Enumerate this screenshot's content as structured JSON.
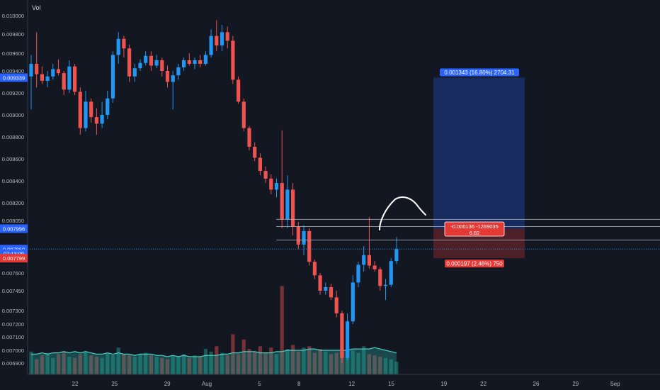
{
  "chart_data": {
    "type": "candlestick",
    "title": "",
    "volume_label": "Vol",
    "y_ticks": [
      0.0069,
      0.007,
      0.0071,
      0.0072,
      0.0073,
      0.00745,
      0.0076,
      0.0078,
      0.00805,
      0.0082,
      0.0084,
      0.0086,
      0.0088,
      0.009,
      0.0092,
      0.0094,
      0.0096,
      0.0098,
      0.01
    ],
    "y_tick_labels": [
      "0.006900",
      "0.007000",
      "0.007100",
      "0.007200",
      "0.007300",
      "0.007450",
      "0.007600",
      "0.007800",
      "0.008050",
      "0.008200",
      "0.008400",
      "0.008600",
      "0.008800",
      "0.009000",
      "0.009200",
      "0.009400",
      "0.009600",
      "0.009800",
      "0.010000"
    ],
    "x_ticks": [
      {
        "label": "22",
        "day": 22
      },
      {
        "label": "25",
        "day": 25
      },
      {
        "label": "29",
        "day": 29
      },
      {
        "label": "Aug",
        "day": 32
      },
      {
        "label": "5",
        "day": 36
      },
      {
        "label": "8",
        "day": 39
      },
      {
        "label": "12",
        "day": 43
      },
      {
        "label": "15",
        "day": 46
      },
      {
        "label": "19",
        "day": 50
      },
      {
        "label": "22",
        "day": 53
      },
      {
        "label": "26",
        "day": 57
      },
      {
        "label": "29",
        "day": 60
      },
      {
        "label": "Sep",
        "day": 63
      }
    ],
    "price_badges": [
      {
        "label": "0.009339",
        "value": 0.009339,
        "color": "#2962ff"
      },
      {
        "label": "0.007996",
        "value": 0.007996,
        "color": "#2962ff"
      },
      {
        "label": "0.007860",
        "value": 0.00786,
        "color": "#2962ff"
      },
      {
        "label": "07:13:09",
        "value": 0.00783,
        "color": "#2962ff"
      },
      {
        "label": "0.007799",
        "value": 0.007799,
        "color": "#e53935"
      }
    ],
    "current_price": 0.00786,
    "candles": [
      {
        "o": 0.00935,
        "h": 0.00958,
        "l": 0.00905,
        "c": 0.00948,
        "v": 0.00699
      },
      {
        "o": 0.00948,
        "h": 0.00982,
        "l": 0.00925,
        "c": 0.00937,
        "v": 0.00693
      },
      {
        "o": 0.00937,
        "h": 0.00945,
        "l": 0.00928,
        "c": 0.00931,
        "v": 0.00696
      },
      {
        "o": 0.00931,
        "h": 0.0094,
        "l": 0.00925,
        "c": 0.00935,
        "v": 0.00698
      },
      {
        "o": 0.00935,
        "h": 0.00948,
        "l": 0.00932,
        "c": 0.00942,
        "v": 0.00694
      },
      {
        "o": 0.00942,
        "h": 0.00953,
        "l": 0.00936,
        "c": 0.00938,
        "v": 0.00697
      },
      {
        "o": 0.00938,
        "h": 0.0094,
        "l": 0.00918,
        "c": 0.00923,
        "v": 0.00699
      },
      {
        "o": 0.00923,
        "h": 0.00952,
        "l": 0.0092,
        "c": 0.00945,
        "v": 0.00695
      },
      {
        "o": 0.00945,
        "h": 0.00948,
        "l": 0.00918,
        "c": 0.00921,
        "v": 0.00694
      },
      {
        "o": 0.00921,
        "h": 0.00925,
        "l": 0.00882,
        "c": 0.00888,
        "v": 0.00697
      },
      {
        "o": 0.00888,
        "h": 0.00922,
        "l": 0.00885,
        "c": 0.00912,
        "v": 0.00699
      },
      {
        "o": 0.00912,
        "h": 0.00915,
        "l": 0.00893,
        "c": 0.00898,
        "v": 0.00696
      },
      {
        "o": 0.00898,
        "h": 0.00906,
        "l": 0.00882,
        "c": 0.00892,
        "v": 0.00695
      },
      {
        "o": 0.00892,
        "h": 0.00912,
        "l": 0.00888,
        "c": 0.009,
        "v": 0.00694
      },
      {
        "o": 0.009,
        "h": 0.00922,
        "l": 0.00896,
        "c": 0.00915,
        "v": 0.00698
      },
      {
        "o": 0.00915,
        "h": 0.00962,
        "l": 0.00911,
        "c": 0.00958,
        "v": 0.00696
      },
      {
        "o": 0.00958,
        "h": 0.00982,
        "l": 0.00948,
        "c": 0.00975,
        "v": 0.00702
      },
      {
        "o": 0.00975,
        "h": 0.00978,
        "l": 0.00955,
        "c": 0.00965,
        "v": 0.00697
      },
      {
        "o": 0.00965,
        "h": 0.00969,
        "l": 0.0093,
        "c": 0.00935,
        "v": 0.00696
      },
      {
        "o": 0.00935,
        "h": 0.00948,
        "l": 0.0093,
        "c": 0.00943,
        "v": 0.00695
      },
      {
        "o": 0.00943,
        "h": 0.00953,
        "l": 0.0094,
        "c": 0.00949,
        "v": 0.00697
      },
      {
        "o": 0.00949,
        "h": 0.00962,
        "l": 0.00946,
        "c": 0.00957,
        "v": 0.00698
      },
      {
        "o": 0.00957,
        "h": 0.00962,
        "l": 0.0094,
        "c": 0.00946,
        "v": 0.00696
      },
      {
        "o": 0.00946,
        "h": 0.00958,
        "l": 0.00943,
        "c": 0.00952,
        "v": 0.00695
      },
      {
        "o": 0.00952,
        "h": 0.00955,
        "l": 0.00935,
        "c": 0.0094,
        "v": 0.00694
      },
      {
        "o": 0.0094,
        "h": 0.00946,
        "l": 0.00925,
        "c": 0.0093,
        "v": 0.00693
      },
      {
        "o": 0.0093,
        "h": 0.0094,
        "l": 0.00905,
        "c": 0.00936,
        "v": 0.00696
      },
      {
        "o": 0.00936,
        "h": 0.00948,
        "l": 0.00932,
        "c": 0.00944,
        "v": 0.00695
      },
      {
        "o": 0.00944,
        "h": 0.00955,
        "l": 0.0094,
        "c": 0.00952,
        "v": 0.00697
      },
      {
        "o": 0.00952,
        "h": 0.0096,
        "l": 0.00946,
        "c": 0.00948,
        "v": 0.00694
      },
      {
        "o": 0.00948,
        "h": 0.00955,
        "l": 0.00942,
        "c": 0.00952,
        "v": 0.00696
      },
      {
        "o": 0.00952,
        "h": 0.00958,
        "l": 0.00944,
        "c": 0.00948,
        "v": 0.00695
      },
      {
        "o": 0.00948,
        "h": 0.00962,
        "l": 0.00946,
        "c": 0.00958,
        "v": 0.00701
      },
      {
        "o": 0.00958,
        "h": 0.00985,
        "l": 0.00955,
        "c": 0.00978,
        "v": 0.00699
      },
      {
        "o": 0.00978,
        "h": 0.00995,
        "l": 0.00962,
        "c": 0.00968,
        "v": 0.00703
      },
      {
        "o": 0.00968,
        "h": 0.0099,
        "l": 0.00962,
        "c": 0.00982,
        "v": 0.00698
      },
      {
        "o": 0.00982,
        "h": 0.00988,
        "l": 0.00965,
        "c": 0.00973,
        "v": 0.00696
      },
      {
        "o": 0.00973,
        "h": 0.00978,
        "l": 0.00928,
        "c": 0.00932,
        "v": 0.00712
      },
      {
        "o": 0.00932,
        "h": 0.00935,
        "l": 0.0091,
        "c": 0.00912,
        "v": 0.00697
      },
      {
        "o": 0.00912,
        "h": 0.00915,
        "l": 0.00885,
        "c": 0.00888,
        "v": 0.00708
      },
      {
        "o": 0.00888,
        "h": 0.0089,
        "l": 0.00868,
        "c": 0.00871,
        "v": 0.00701
      },
      {
        "o": 0.00871,
        "h": 0.00875,
        "l": 0.00858,
        "c": 0.00861,
        "v": 0.00699
      },
      {
        "o": 0.00861,
        "h": 0.00865,
        "l": 0.00845,
        "c": 0.00849,
        "v": 0.00703
      },
      {
        "o": 0.00849,
        "h": 0.00853,
        "l": 0.00838,
        "c": 0.00842,
        "v": 0.00698
      },
      {
        "o": 0.00842,
        "h": 0.00846,
        "l": 0.00828,
        "c": 0.00832,
        "v": 0.00702
      },
      {
        "o": 0.00832,
        "h": 0.00842,
        "l": 0.00825,
        "c": 0.00838,
        "v": 0.00697
      },
      {
        "o": 0.00838,
        "h": 0.00886,
        "l": 0.008,
        "c": 0.00806,
        "v": 0.00749
      },
      {
        "o": 0.00806,
        "h": 0.00845,
        "l": 0.008,
        "c": 0.00832,
        "v": 0.00701
      },
      {
        "o": 0.00832,
        "h": 0.00838,
        "l": 0.00795,
        "c": 0.00801,
        "v": 0.00704
      },
      {
        "o": 0.00801,
        "h": 0.00804,
        "l": 0.00786,
        "c": 0.00789,
        "v": 0.00699
      },
      {
        "o": 0.00789,
        "h": 0.00802,
        "l": 0.00782,
        "c": 0.00798,
        "v": 0.00702
      },
      {
        "o": 0.00798,
        "h": 0.008,
        "l": 0.0077,
        "c": 0.00775,
        "v": 0.00703
      },
      {
        "o": 0.00775,
        "h": 0.00778,
        "l": 0.00755,
        "c": 0.00758,
        "v": 0.00698
      },
      {
        "o": 0.00758,
        "h": 0.0076,
        "l": 0.00742,
        "c": 0.00745,
        "v": 0.00701
      },
      {
        "o": 0.00745,
        "h": 0.00752,
        "l": 0.00742,
        "c": 0.00748,
        "v": 0.00699
      },
      {
        "o": 0.00748,
        "h": 0.00751,
        "l": 0.00738,
        "c": 0.0074,
        "v": 0.00697
      },
      {
        "o": 0.0074,
        "h": 0.00745,
        "l": 0.00725,
        "c": 0.00728,
        "v": 0.00698
      },
      {
        "o": 0.00728,
        "h": 0.0073,
        "l": 0.0069,
        "c": 0.00694,
        "v": 0.00702
      },
      {
        "o": 0.00694,
        "h": 0.00728,
        "l": 0.00692,
        "c": 0.00722,
        "v": 0.00701
      },
      {
        "o": 0.00722,
        "h": 0.00758,
        "l": 0.0072,
        "c": 0.00752,
        "v": 0.007
      },
      {
        "o": 0.00752,
        "h": 0.00775,
        "l": 0.00748,
        "c": 0.00771,
        "v": 0.00698
      },
      {
        "o": 0.00771,
        "h": 0.00788,
        "l": 0.00762,
        "c": 0.00782,
        "v": 0.00703
      },
      {
        "o": 0.00782,
        "h": 0.00808,
        "l": 0.00766,
        "c": 0.0077,
        "v": 0.00697
      },
      {
        "o": 0.0077,
        "h": 0.00776,
        "l": 0.00762,
        "c": 0.00765,
        "v": 0.00696
      },
      {
        "o": 0.00765,
        "h": 0.00768,
        "l": 0.00745,
        "c": 0.00749,
        "v": 0.00695
      },
      {
        "o": 0.00749,
        "h": 0.00755,
        "l": 0.00738,
        "c": 0.0075,
        "v": 0.00694
      },
      {
        "o": 0.0075,
        "h": 0.0078,
        "l": 0.00748,
        "c": 0.00776,
        "v": 0.00693
      },
      {
        "o": 0.00776,
        "h": 0.00794,
        "l": 0.00772,
        "c": 0.00786,
        "v": 0.00691
      }
    ],
    "volume_ma": [
      0.00697,
      0.00697,
      0.00698,
      0.00697,
      0.00698,
      0.00698,
      0.00699,
      0.00698,
      0.00699,
      0.00698,
      0.00699,
      0.00698,
      0.00697,
      0.00697,
      0.00698,
      0.00697,
      0.00698,
      0.00697,
      0.00697,
      0.00696,
      0.00697,
      0.00697,
      0.00697,
      0.00696,
      0.00696,
      0.00695,
      0.00696,
      0.00695,
      0.00696,
      0.00695,
      0.00695,
      0.00695,
      0.00696,
      0.00696,
      0.00696,
      0.00697,
      0.00697,
      0.00698,
      0.00698,
      0.00699,
      0.00699,
      0.00699,
      0.00698,
      0.00698,
      0.00698,
      0.00699,
      0.00699,
      0.007,
      0.007,
      0.007,
      0.007,
      0.00701,
      0.00701,
      0.007,
      0.007,
      0.007,
      0.007,
      0.007,
      0.007,
      0.00701,
      0.00701,
      0.00701,
      0.00701,
      0.00702,
      0.00701,
      0.007,
      0.00699,
      0.00698
    ],
    "position": {
      "entry": 0.007996,
      "target": 0.009339,
      "stop": 0.007799,
      "target_label": "0.001343 (16.80%) 2704.31",
      "stop_label": "0.000197 (2.46%) 750",
      "center_label_line1": "-0.000136 -1269035",
      "center_label_line2": "6.82",
      "profit_color": "#2962ff",
      "loss_color": "#e53935"
    },
    "range_lines": [
      0.00806,
      0.00801,
      0.00792
    ],
    "up_color": "#2196f3",
    "down_color": "#ef5350",
    "volume_up_color": "#26a69a",
    "volume_down_color": "#ef5350",
    "grid": false
  }
}
